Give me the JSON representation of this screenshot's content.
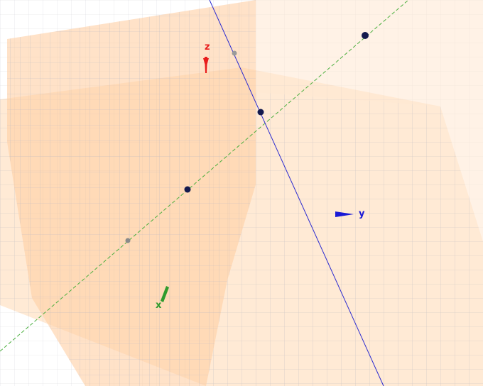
{
  "axes": {
    "x": {
      "label": "x",
      "color": "#2e9b2e"
    },
    "y": {
      "label": "y",
      "color": "#1a1ad6"
    },
    "z": {
      "label": "z",
      "color": "#e81c1c"
    }
  },
  "colors": {
    "plane_fill": "#ffd9b3",
    "grid_line": "#b9b9c4",
    "line_green": "#4caf3f",
    "line_blue": "#2a2ad0",
    "point_dark": "#141a4e",
    "point_gray": "#8a8a8a"
  }
}
